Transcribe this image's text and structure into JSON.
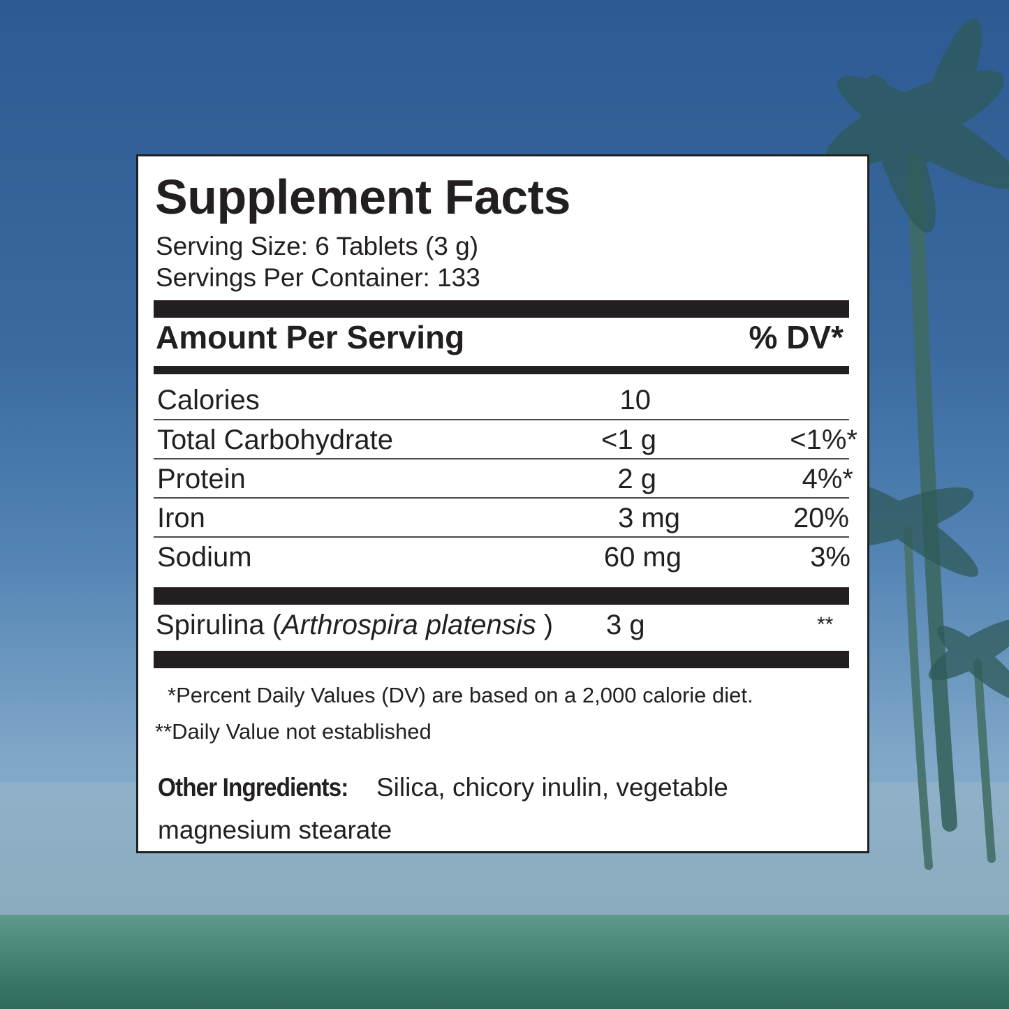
{
  "colors": {
    "background_sky": "#3a6aa0",
    "label_background": "#ffffff",
    "text": "#231f20"
  },
  "facts": {
    "title": "Supplement Facts",
    "serving_size": "Serving Size: 6 Tablets (3 g)",
    "servings_per_container": "Servings Per Container: 133",
    "header_amount": "Amount Per Serving",
    "header_dv": "% DV*",
    "rows": [
      {
        "name": "Calories",
        "amount": "10",
        "dv": ""
      },
      {
        "name": "Total Carbohydrate",
        "amount": "<1 g",
        "dv": "<1%*"
      },
      {
        "name": "Protein",
        "amount": "2 g",
        "dv": "4%*"
      },
      {
        "name": "Iron",
        "amount": "3 mg",
        "dv": "20%"
      },
      {
        "name": "Sodium",
        "amount": "60 mg",
        "dv": "3%"
      }
    ],
    "spirulina": {
      "name": "Spirulina (",
      "latin": "Arthrospira platensis",
      "close": " )",
      "amount": "3 g",
      "dv": "**"
    },
    "footnote_1": "*Percent Daily Values (DV) are based on a 2,000 calorie diet.",
    "footnote_2": "**Daily Value not established",
    "other_ingredients_label": "Other Ingredients:",
    "other_ingredients_line1": "Silica, chicory inulin, vegetable",
    "other_ingredients_line2": "magnesium  stearate"
  }
}
